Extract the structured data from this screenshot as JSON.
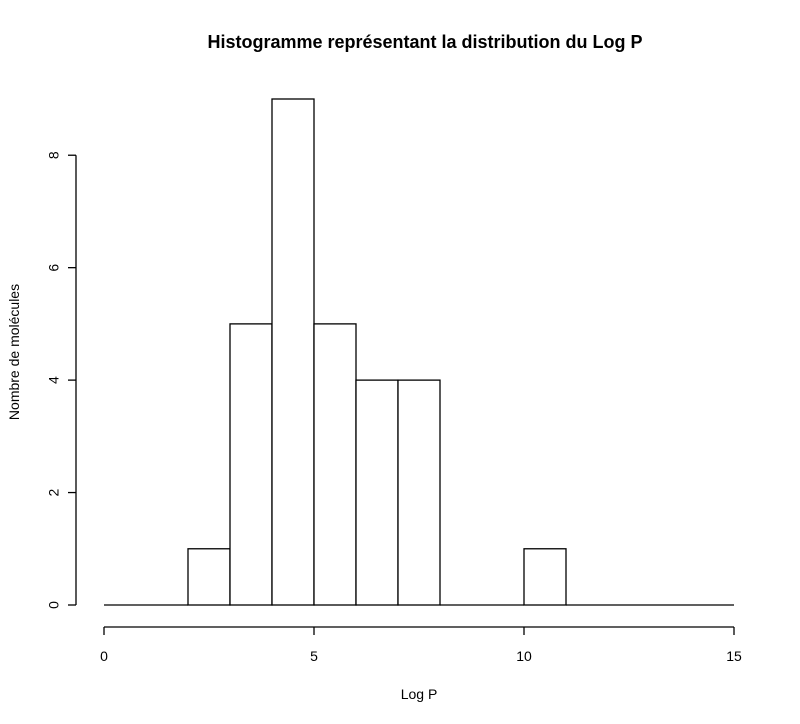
{
  "chart_data": {
    "type": "bar",
    "subtype": "histogram",
    "title": "Histogramme représentant la distribution du Log P",
    "xlabel": "Log P",
    "ylabel": "Nombre de molécules",
    "xlim": [
      0,
      15
    ],
    "ylim": [
      0,
      9
    ],
    "x_ticks": [
      0,
      5,
      10,
      15
    ],
    "x_tick_labels": [
      "0",
      "5",
      "10",
      "15"
    ],
    "y_ticks": [
      0,
      2,
      4,
      6,
      8
    ],
    "y_tick_labels": [
      "0",
      "2",
      "4",
      "6",
      "8"
    ],
    "bins": [
      {
        "from": 0,
        "to": 1,
        "count": 0
      },
      {
        "from": 1,
        "to": 2,
        "count": 0
      },
      {
        "from": 2,
        "to": 3,
        "count": 1
      },
      {
        "from": 3,
        "to": 4,
        "count": 5
      },
      {
        "from": 4,
        "to": 5,
        "count": 9
      },
      {
        "from": 5,
        "to": 6,
        "count": 5
      },
      {
        "from": 6,
        "to": 7,
        "count": 4
      },
      {
        "from": 7,
        "to": 8,
        "count": 4
      },
      {
        "from": 8,
        "to": 9,
        "count": 0
      },
      {
        "from": 9,
        "to": 10,
        "count": 0
      },
      {
        "from": 10,
        "to": 11,
        "count": 1
      },
      {
        "from": 11,
        "to": 12,
        "count": 0
      },
      {
        "from": 12,
        "to": 13,
        "count": 0
      },
      {
        "from": 13,
        "to": 14,
        "count": 0
      },
      {
        "from": 14,
        "to": 15,
        "count": 0
      }
    ],
    "bar_fill": "#ffffff",
    "bar_stroke": "#000000",
    "grid": false,
    "legend": "none"
  }
}
